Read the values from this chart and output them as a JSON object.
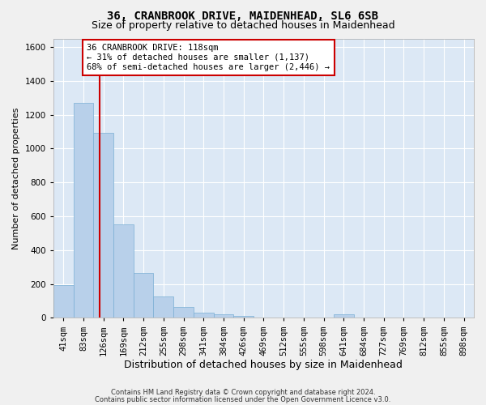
{
  "title": "36, CRANBROOK DRIVE, MAIDENHEAD, SL6 6SB",
  "subtitle": "Size of property relative to detached houses in Maidenhead",
  "xlabel": "Distribution of detached houses by size in Maidenhead",
  "ylabel": "Number of detached properties",
  "footnote1": "Contains HM Land Registry data © Crown copyright and database right 2024.",
  "footnote2": "Contains public sector information licensed under the Open Government Licence v3.0.",
  "bar_labels": [
    "41sqm",
    "83sqm",
    "126sqm",
    "169sqm",
    "212sqm",
    "255sqm",
    "298sqm",
    "341sqm",
    "384sqm",
    "426sqm",
    "469sqm",
    "512sqm",
    "555sqm",
    "598sqm",
    "641sqm",
    "684sqm",
    "727sqm",
    "769sqm",
    "812sqm",
    "855sqm",
    "898sqm"
  ],
  "bar_values": [
    195,
    1270,
    1095,
    550,
    265,
    125,
    65,
    33,
    22,
    12,
    0,
    0,
    0,
    0,
    20,
    0,
    0,
    0,
    0,
    0,
    0
  ],
  "bar_color": "#b8d0ea",
  "bar_edgecolor": "#7aafd4",
  "annotation_text": "36 CRANBROOK DRIVE: 118sqm\n← 31% of detached houses are smaller (1,137)\n68% of semi-detached houses are larger (2,446) →",
  "annotation_box_color": "#ffffff",
  "annotation_box_edgecolor": "#cc0000",
  "red_line_color": "#cc0000",
  "ylim": [
    0,
    1650
  ],
  "yticks": [
    0,
    200,
    400,
    600,
    800,
    1000,
    1200,
    1400,
    1600
  ],
  "background_color": "#dce8f5",
  "grid_color": "#ffffff",
  "fig_facecolor": "#f0f0f0",
  "title_fontsize": 10,
  "subtitle_fontsize": 9,
  "xlabel_fontsize": 9,
  "ylabel_fontsize": 8,
  "tick_fontsize": 7.5,
  "annot_fontsize": 7.5,
  "footnote_fontsize": 6
}
